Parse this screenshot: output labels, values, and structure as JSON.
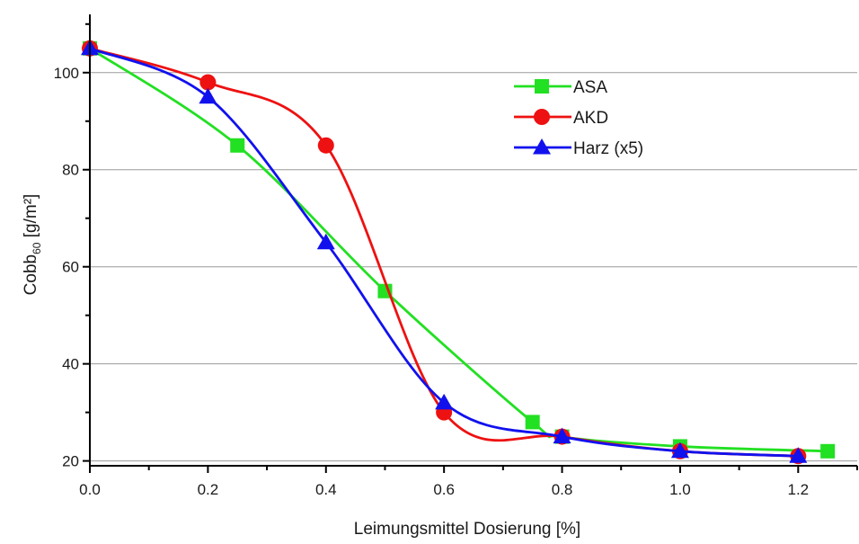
{
  "chart_data": {
    "type": "line",
    "xlabel": "Leimungsmittel Dosierung [%]",
    "ylabel_main": "Cobb",
    "ylabel_sub": "60",
    "ylabel_unit": " [g/m²]",
    "xlim": [
      0,
      1.3
    ],
    "ylim": [
      19,
      112
    ],
    "x_ticks": [
      0.0,
      0.2,
      0.4,
      0.6,
      0.8,
      1.0,
      1.2
    ],
    "x_tick_labels": [
      "0.0",
      "0.2",
      "0.4",
      "0.6",
      "0.8",
      "1.0",
      "1.2"
    ],
    "y_ticks": [
      20,
      40,
      60,
      80,
      100
    ],
    "y_tick_labels": [
      "20",
      "40",
      "60",
      "80",
      "100"
    ],
    "horizontal_grid": true,
    "legend_position": "top-right",
    "series": [
      {
        "name": "ASA",
        "color": "#22e022",
        "marker": "square",
        "x": [
          0.0,
          0.25,
          0.5,
          0.75,
          0.8,
          1.0,
          1.25
        ],
        "y": [
          105,
          85,
          55,
          28,
          25,
          23,
          22
        ]
      },
      {
        "name": "AKD",
        "color": "#ee1111",
        "marker": "circle",
        "x": [
          0.0,
          0.2,
          0.4,
          0.6,
          0.8,
          1.0,
          1.2
        ],
        "y": [
          105,
          98,
          85,
          30,
          25,
          22,
          21
        ]
      },
      {
        "name": "Harz (x5)",
        "color": "#1111ee",
        "marker": "triangle",
        "x": [
          0.0,
          0.2,
          0.4,
          0.6,
          0.8,
          1.0,
          1.2
        ],
        "y": [
          105,
          95,
          65,
          32,
          25,
          22,
          21
        ]
      }
    ]
  }
}
